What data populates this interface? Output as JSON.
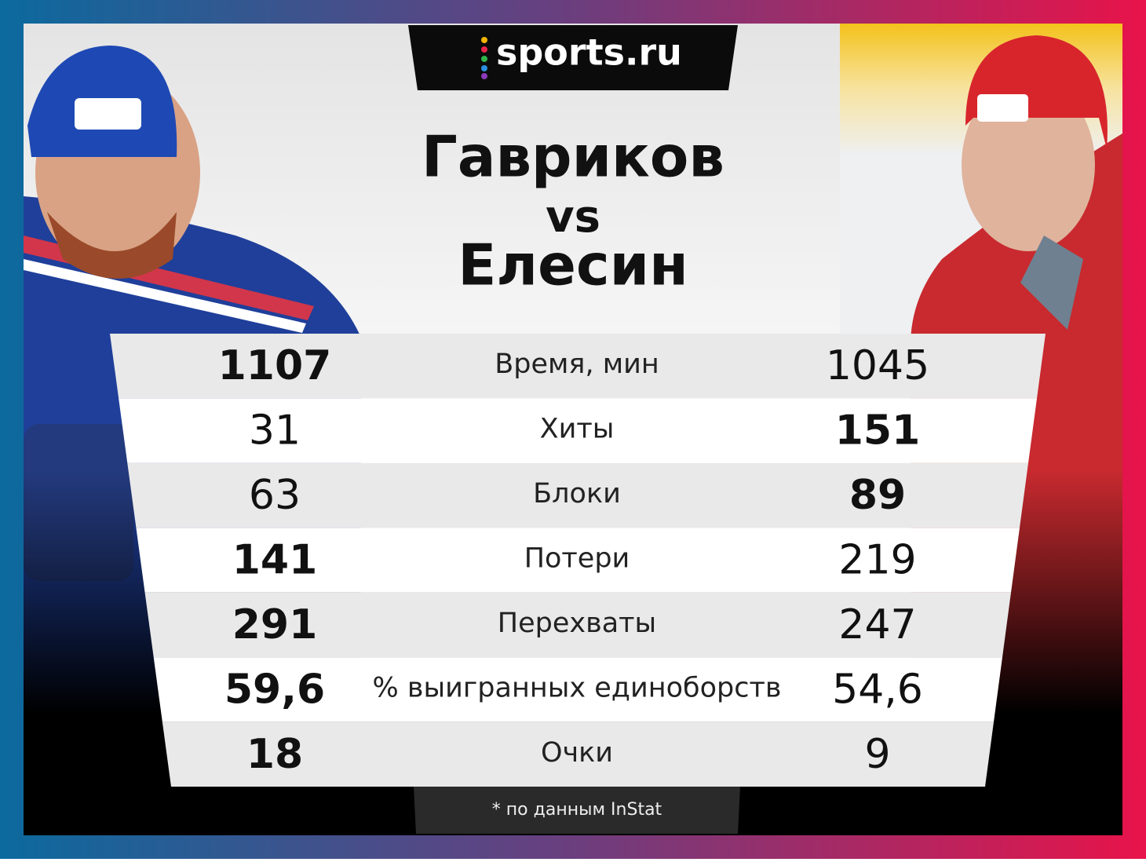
{
  "logo": "sports.ru",
  "title": {
    "player1": "Гавриков",
    "vs": "vs",
    "player2": "Елесин"
  },
  "table": {
    "rows": [
      {
        "left": "1107",
        "label": "Время, мин",
        "right": "1045",
        "bold": "left"
      },
      {
        "left": "31",
        "label": "Хиты",
        "right": "151",
        "bold": "right"
      },
      {
        "left": "63",
        "label": "Блоки",
        "right": "89",
        "bold": "right"
      },
      {
        "left": "141",
        "label": "Потери",
        "right": "219",
        "bold": "left"
      },
      {
        "left": "291",
        "label": "Перехваты",
        "right": "247",
        "bold": "left"
      },
      {
        "left": "59,6",
        "label": "% выигранных единоборств",
        "right": "54,6",
        "bold": "left"
      },
      {
        "left": "18",
        "label": "Очки",
        "right": "9",
        "bold": "left"
      }
    ]
  },
  "footnote": "* по данным InStat"
}
